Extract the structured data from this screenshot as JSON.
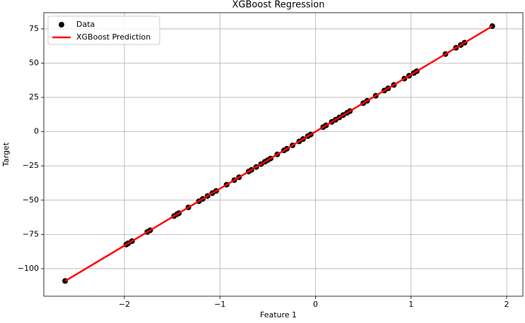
{
  "chart_data": {
    "type": "scatter",
    "title": "XGBoost Regression",
    "x_label": "Feature 1",
    "y_label": "Target",
    "xlim": [
      -2.843,
      2.17
    ],
    "ylim": [
      -120.1,
      86.8
    ],
    "xticks": [
      {
        "value": -2,
        "label": "−2"
      },
      {
        "value": -1,
        "label": "−1"
      },
      0,
      1,
      2
    ],
    "yticks": [
      {
        "value": -100,
        "label": "−100"
      },
      {
        "value": -75,
        "label": "−75"
      },
      {
        "value": -50,
        "label": "−50"
      },
      {
        "value": -25,
        "label": "−25"
      },
      0,
      25,
      50,
      75
    ],
    "grid": true,
    "legend": "upper left",
    "series": [
      {
        "name": "Data",
        "type": "scatter",
        "color": "#000000",
        "x": [
          -2.62,
          -1.98,
          -1.96,
          -1.92,
          -1.76,
          -1.73,
          -1.48,
          -1.45,
          -1.43,
          -1.33,
          -1.22,
          -1.18,
          -1.13,
          -1.08,
          -1.04,
          -0.93,
          -0.85,
          -0.8,
          -0.7,
          -0.67,
          -0.62,
          -0.57,
          -0.53,
          -0.5,
          -0.47,
          -0.4,
          -0.33,
          -0.3,
          -0.24,
          -0.17,
          -0.13,
          -0.08,
          -0.05,
          0.08,
          0.11,
          0.17,
          0.21,
          0.25,
          0.29,
          0.33,
          0.36,
          0.5,
          0.54,
          0.63,
          0.72,
          0.76,
          0.82,
          0.93,
          0.98,
          1.03,
          1.06,
          1.36,
          1.47,
          1.52,
          1.56,
          1.85
        ],
        "values": [
          -109,
          -82.4,
          -81.5,
          -79.9,
          -73.2,
          -72.0,
          -61.6,
          -60.3,
          -59.5,
          -55.3,
          -50.8,
          -49.1,
          -47.0,
          -44.9,
          -43.3,
          -38.7,
          -35.4,
          -33.3,
          -29.1,
          -27.9,
          -25.8,
          -23.7,
          -22.0,
          -20.8,
          -19.6,
          -16.6,
          -13.7,
          -12.5,
          -10.0,
          -7.1,
          -5.4,
          -3.3,
          -2.1,
          3.3,
          4.6,
          7.1,
          8.7,
          10.4,
          12.1,
          13.7,
          15.0,
          20.8,
          22.5,
          26.2,
          30.0,
          31.6,
          34.1,
          38.7,
          40.8,
          42.8,
          44.1,
          56.6,
          61.2,
          63.2,
          64.9,
          77.0
        ]
      },
      {
        "name": "XGBoost Prediction",
        "type": "line",
        "color": "#ff0000",
        "x": [
          -2.62,
          -1.98,
          -1.73,
          -1.48,
          -1.33,
          -1.08,
          -0.85,
          -0.62,
          -0.4,
          -0.17,
          0.08,
          0.33,
          0.54,
          0.82,
          1.06,
          1.36,
          1.56,
          1.85
        ],
        "values": [
          -109,
          -82.4,
          -72.0,
          -61.6,
          -55.3,
          -44.9,
          -35.4,
          -25.8,
          -16.6,
          -7.1,
          3.3,
          13.7,
          22.5,
          34.1,
          44.1,
          56.6,
          64.9,
          77.0
        ]
      }
    ]
  }
}
